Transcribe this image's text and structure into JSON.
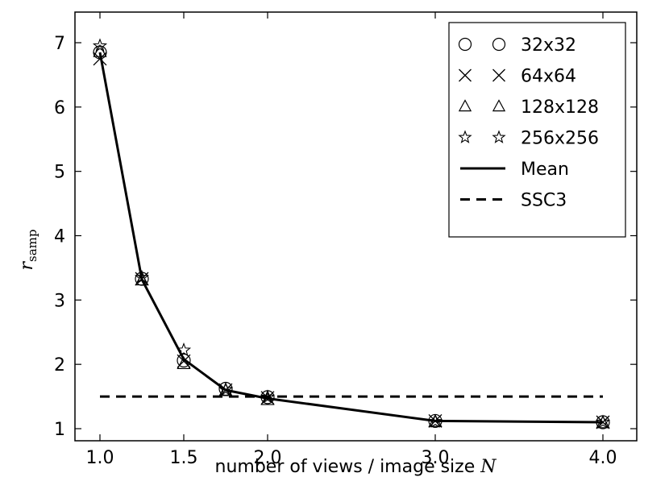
{
  "chart_data": {
    "type": "line",
    "x_categories": [
      1.0,
      1.25,
      1.5,
      1.75,
      2.0,
      3.0,
      4.0
    ],
    "xticks": [
      "1.0",
      "1.5",
      "2.0",
      "3.0",
      "4.0"
    ],
    "xtick_values": [
      1.0,
      1.5,
      2.0,
      3.0,
      4.0
    ],
    "yticks": [
      "1",
      "2",
      "3",
      "4",
      "5",
      "6",
      "7"
    ],
    "ylim": [
      0.85,
      7.3
    ],
    "xlabel": "number of views / image size",
    "xlabel_symbol": "N",
    "ylabel": "r",
    "ylabel_subscript": "samp",
    "legend_position": "top-right",
    "series": [
      {
        "name": "32x32",
        "marker": "circle",
        "values": [
          6.85,
          3.33,
          2.06,
          1.62,
          1.49,
          1.12,
          1.1
        ]
      },
      {
        "name": "64x64",
        "marker": "x",
        "values": [
          6.75,
          3.33,
          2.05,
          1.6,
          1.48,
          1.12,
          1.1
        ]
      },
      {
        "name": "128x128",
        "marker": "triangle",
        "values": [
          6.86,
          3.31,
          2.01,
          1.59,
          1.45,
          1.11,
          1.09
        ]
      },
      {
        "name": "256x256",
        "marker": "star",
        "values": [
          6.95,
          3.35,
          2.22,
          1.61,
          1.49,
          1.11,
          1.1
        ]
      },
      {
        "name": "Mean",
        "marker": "solid-line",
        "values": [
          6.85,
          3.32,
          2.08,
          1.6,
          1.47,
          1.12,
          1.1
        ]
      }
    ],
    "reference": {
      "name": "SSC3",
      "style": "dashed",
      "value": 1.5,
      "x_range": [
        1.0,
        4.0
      ]
    }
  }
}
